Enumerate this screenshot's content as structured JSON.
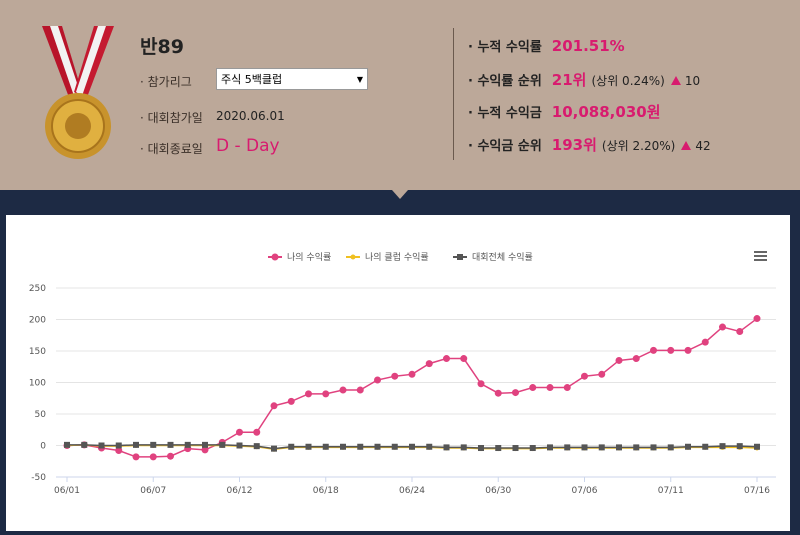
{
  "header": {
    "profile": {
      "name": "반89",
      "league_label": "· 참가리그",
      "league_value": "주식 5백클럽",
      "start_label": "· 대회참가일",
      "start_value": "2020.06.01",
      "end_label": "· 대회종료일",
      "end_value": "D - Day"
    },
    "stats": [
      {
        "label": "· 누적 수익률",
        "value": "201.51%"
      },
      {
        "label": "· 수익률 순위",
        "value": "21위",
        "detail": "(상위 0.24%)",
        "change": "10"
      },
      {
        "label": "· 누적 수익금",
        "value": "10,088,030원"
      },
      {
        "label": "· 수익금 순위",
        "value": "193위",
        "detail": "(상위 2.20%)",
        "change": "42"
      }
    ]
  },
  "chart_data": {
    "type": "line",
    "categories": [
      "06/01",
      null,
      null,
      null,
      null,
      "06/07",
      null,
      null,
      null,
      null,
      "06/12",
      null,
      null,
      null,
      null,
      "06/18",
      null,
      null,
      null,
      null,
      "06/24",
      null,
      null,
      null,
      null,
      "06/30",
      null,
      null,
      null,
      null,
      "07/06",
      null,
      null,
      null,
      null,
      "07/11",
      null,
      null,
      null,
      null,
      "07/16"
    ],
    "series": [
      {
        "name": "나의 수익률",
        "color": "#e0427f",
        "marker": "circle",
        "values": [
          0,
          1,
          -4,
          -8,
          -18,
          -18,
          -17,
          -5,
          -7,
          5,
          21,
          21,
          63,
          70,
          82,
          82,
          88,
          88,
          104,
          110,
          113,
          130,
          138,
          138,
          98,
          83,
          84,
          92,
          92,
          92,
          110,
          113,
          135,
          138,
          151,
          151,
          151,
          164,
          188,
          181,
          201.51
        ]
      },
      {
        "name": "나의 클럽 수익률",
        "color": "#f0c020",
        "marker": "dot",
        "values": [
          0,
          1,
          -1,
          -1,
          0,
          0,
          0,
          0,
          0,
          0,
          -1,
          -2,
          -6,
          -3,
          -3,
          -3,
          -3,
          -3,
          -3,
          -3,
          -3,
          -3,
          -4,
          -4,
          -5,
          -5,
          -5,
          -5,
          -4,
          -4,
          -4,
          -4,
          -4,
          -4,
          -4,
          -4,
          -3,
          -3,
          -3,
          -3,
          -4
        ]
      },
      {
        "name": "대회전체 수익률",
        "color": "#555555",
        "marker": "square",
        "values": [
          1,
          1,
          0,
          0,
          1,
          1,
          1,
          1,
          1,
          1,
          0,
          -1,
          -5,
          -2,
          -2,
          -2,
          -2,
          -2,
          -2,
          -2,
          -2,
          -2,
          -3,
          -3,
          -4,
          -4,
          -4,
          -4,
          -3,
          -3,
          -3,
          -3,
          -3,
          -3,
          -3,
          -3,
          -2,
          -2,
          -1,
          -1,
          -2
        ]
      }
    ],
    "ylim": [
      -50,
      250
    ],
    "yticks": [
      -50,
      0,
      50,
      100,
      150,
      200,
      250
    ],
    "grid": true,
    "legend": "top"
  }
}
